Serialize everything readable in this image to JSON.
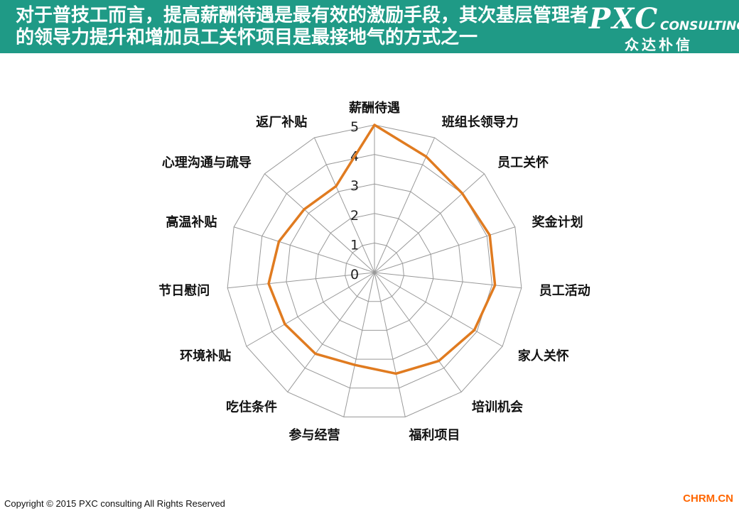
{
  "header": {
    "title": "对于普技工而言，提高薪酬待遇是最有效的激励手段，其次基层管理者的领导力提升和增加员工关怀项目是最接地气的方式之一"
  },
  "logo": {
    "brand": "PXC",
    "consulting": "CONSULTING",
    "chinese": "众达朴信"
  },
  "footer": {
    "copyright": "Copyright © 2015  PXC consulting All Rights Reserved",
    "site": "CHRM.CN"
  },
  "chart_data": {
    "type": "radar",
    "categories": [
      "薪酬待遇",
      "班组长领导力",
      "员工关怀",
      "奖金计划",
      "员工活动",
      "家人关怀",
      "培训机会",
      "福利项目",
      "参与经营",
      "吃住条件",
      "环境补贴",
      "节日慰问",
      "高温补贴",
      "心理沟通与疏导",
      "返厂补贴"
    ],
    "values": [
      5,
      4.3,
      4.0,
      4.1,
      4.1,
      3.9,
      3.7,
      3.5,
      3.2,
      3.4,
      3.5,
      3.6,
      3.4,
      3.2,
      3.2
    ],
    "ticks": [
      "0",
      "1",
      "2",
      "3",
      "4",
      "5"
    ],
    "range": [
      0,
      5
    ],
    "grid": true,
    "legend": "none",
    "line_color": "#e07b20",
    "grid_color": "#999999"
  },
  "colors": {
    "header_bg": "#1f9a86",
    "accent": "#e07b20"
  }
}
